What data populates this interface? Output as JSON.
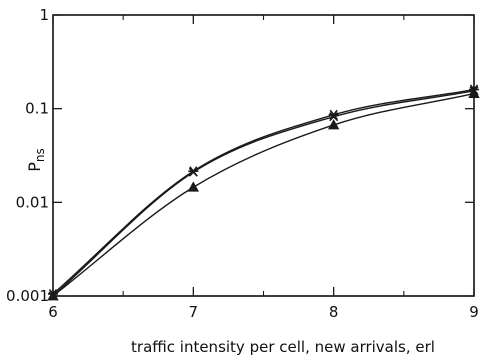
{
  "chart_data": {
    "type": "line",
    "title": "",
    "xlabel": "traffic intensity per cell, new arrivals, erl",
    "ylabel_main": "P",
    "ylabel_sub": "ns",
    "xlim": [
      6,
      9
    ],
    "ylim": [
      0.001,
      1
    ],
    "yscale": "log",
    "x_ticks": [
      6,
      7,
      8,
      9
    ],
    "x_tick_labels": [
      "6",
      "7",
      "8",
      "9"
    ],
    "x_minor_ticks": [
      6.5,
      7.5,
      8.5
    ],
    "y_ticks": [
      0.001,
      0.01,
      0.1,
      1
    ],
    "y_tick_labels": [
      "0.001",
      "0.01",
      "0.1",
      "1"
    ],
    "grid": false,
    "line_color": "#1a1a1a",
    "series": [
      {
        "marker": "asterisk",
        "x": [
          6,
          7,
          8,
          9
        ],
        "y": [
          0.00105,
          0.0215,
          0.086,
          0.16
        ]
      },
      {
        "marker": "cross",
        "x": [
          6,
          7,
          8,
          9
        ],
        "y": [
          0.001,
          0.021,
          0.082,
          0.155
        ]
      },
      {
        "marker": "triangle",
        "x": [
          6,
          7,
          8,
          9
        ],
        "y": [
          0.001,
          0.0145,
          0.067,
          0.145
        ]
      }
    ]
  }
}
